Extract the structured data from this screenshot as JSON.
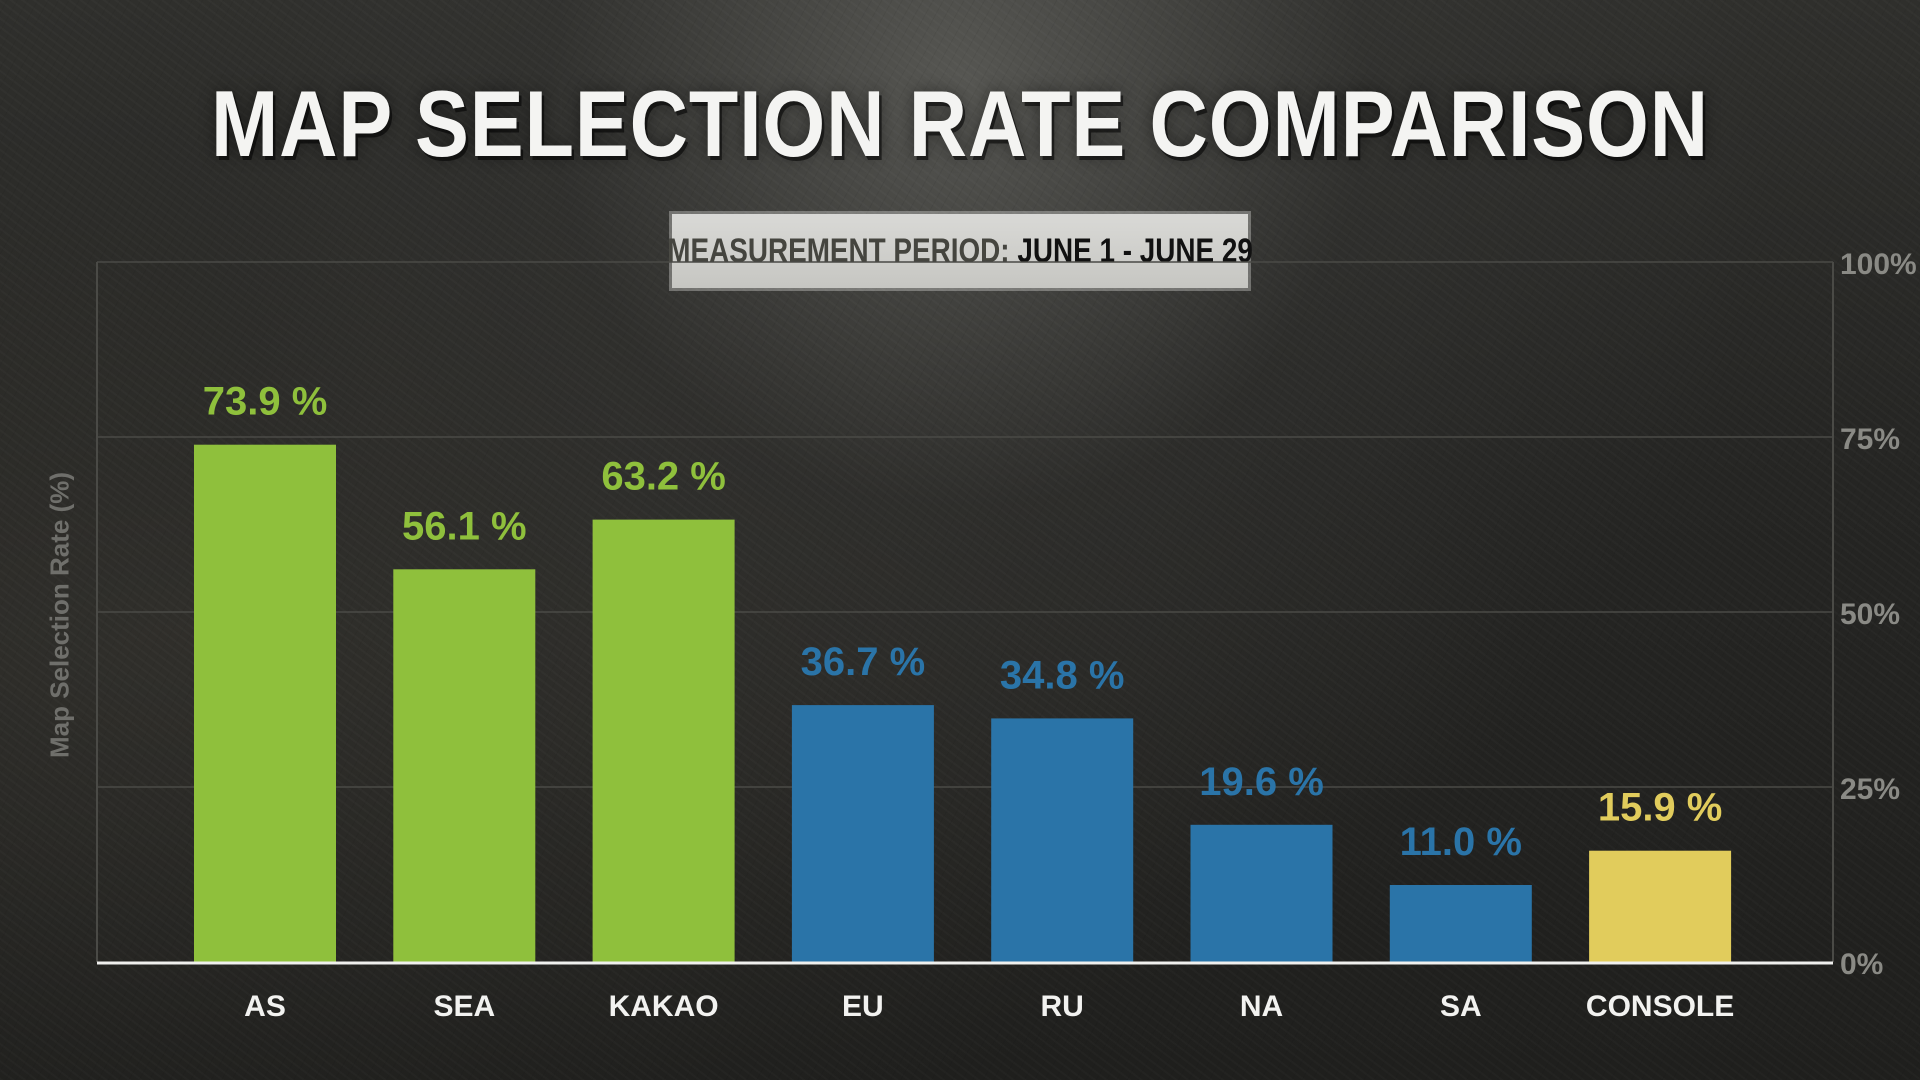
{
  "title": "MAP SELECTION RATE COMPARISON",
  "period": {
    "label": "MEASUREMENT PERIOD:",
    "value": "JUNE 1 - JUNE 29"
  },
  "colors": {
    "green": "#8fc03c",
    "blue": "#2a74a8",
    "yellow": "#e1cc5c",
    "gridline": "#4a4a46",
    "baseline": "#f0f0ee"
  },
  "chart_data": {
    "type": "bar",
    "title": "MAP SELECTION RATE COMPARISON",
    "ylabel": "Map Selection Rate (%)",
    "xlabel": "",
    "ylim": [
      0,
      100
    ],
    "yticks": [
      0,
      25,
      50,
      75,
      100
    ],
    "ytick_labels": [
      "0%",
      "25%",
      "50%",
      "75%",
      "100%"
    ],
    "y_axis_side": "right",
    "grid": true,
    "categories": [
      "AS",
      "SEA",
      "KAKAO",
      "EU",
      "RU",
      "NA",
      "SA",
      "CONSOLE"
    ],
    "values": [
      73.9,
      56.1,
      63.2,
      36.7,
      34.8,
      19.6,
      11.0,
      15.9
    ],
    "value_labels": [
      "73.9 %",
      "56.1 %",
      "63.2 %",
      "36.7 %",
      "34.8 %",
      "19.6 %",
      "11.0 %",
      "15.9 %"
    ],
    "bar_colors": [
      "green",
      "green",
      "green",
      "blue",
      "blue",
      "blue",
      "blue",
      "yellow"
    ]
  }
}
